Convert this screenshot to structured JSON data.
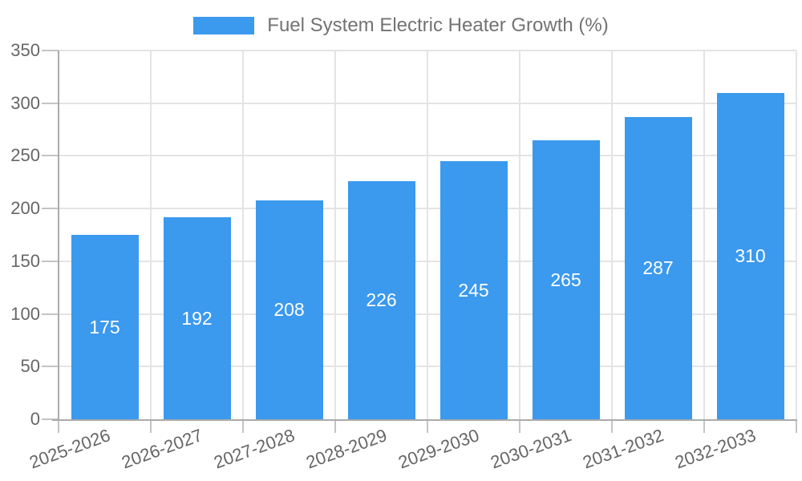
{
  "legend": {
    "title": "Fuel System Electric Heater Growth (%)"
  },
  "chart_data": {
    "type": "bar",
    "title": "Fuel System Electric Heater Growth (%)",
    "categories": [
      "2025-2026",
      "2026-2027",
      "2027-2028",
      "2028-2029",
      "2029-2030",
      "2030-2031",
      "2031-2032",
      "2032-2033"
    ],
    "values": [
      175,
      192,
      208,
      226,
      245,
      265,
      287,
      310
    ],
    "xlabel": "",
    "ylabel": "",
    "ylim": [
      0,
      350
    ],
    "yticks": [
      0,
      50,
      100,
      150,
      200,
      250,
      300,
      350
    ],
    "grid": true,
    "legend_position": "top",
    "value_labels": "centered-inside-bars",
    "colors": {
      "bar": "#3b99ee",
      "bar_value_label": "#ffffff",
      "axis_text": "#666666",
      "legend_text": "#737373",
      "grid_line": "#e4e4e4",
      "axis_line": "#ababab",
      "tick": "#c4c4c4",
      "background": "#ffffff"
    }
  }
}
